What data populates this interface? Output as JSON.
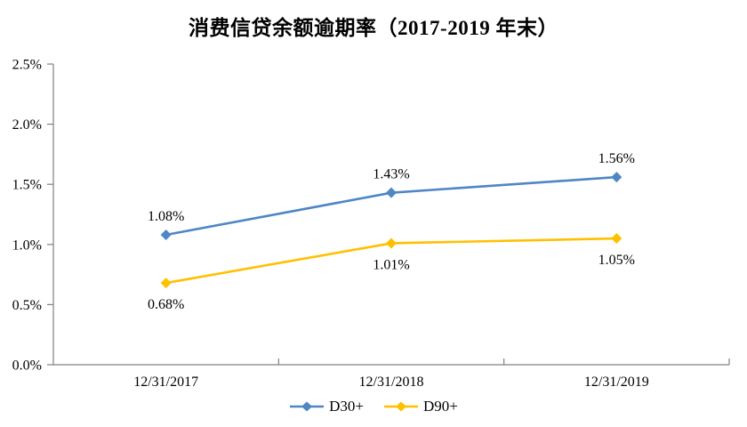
{
  "title": "消费信贷余额逾期率（2017-2019 年末）",
  "chart_data": {
    "type": "line",
    "title": "消费信贷余额逾期率（2017-2019 年末）",
    "categories": [
      "12/31/2017",
      "12/31/2018",
      "12/31/2019"
    ],
    "series": [
      {
        "name": "D30+",
        "color": "#4F86C5",
        "values": [
          1.08,
          1.43,
          1.56
        ],
        "labels": [
          "1.08%",
          "1.43%",
          "1.56%"
        ],
        "label_position": "above",
        "marker": "diamond"
      },
      {
        "name": "D90+",
        "color": "#FFC000",
        "values": [
          0.68,
          1.01,
          1.05
        ],
        "labels": [
          "0.68%",
          "1.01%",
          "1.05%"
        ],
        "label_position": "below",
        "marker": "diamond"
      }
    ],
    "xlabel": "",
    "ylabel": "",
    "ylim": [
      0,
      2.5
    ],
    "ytick_step": 0.5,
    "ytick_labels": [
      "0.0%",
      "0.5%",
      "1.0%",
      "1.5%",
      "2.0%",
      "2.5%"
    ],
    "grid": false,
    "legend_position": "bottom",
    "axis_color": "#808080"
  }
}
